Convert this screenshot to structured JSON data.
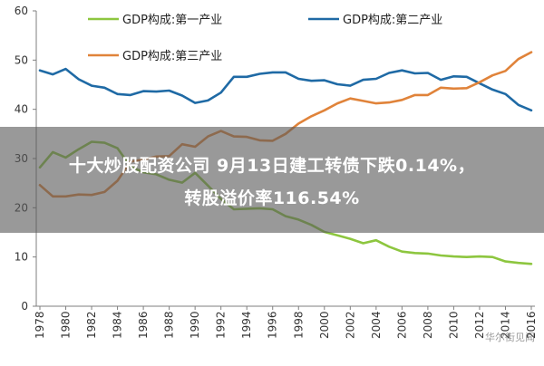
{
  "chart_data": {
    "type": "line",
    "x": [
      1978,
      1979,
      1980,
      1981,
      1982,
      1983,
      1984,
      1985,
      1986,
      1987,
      1988,
      1989,
      1990,
      1991,
      1992,
      1993,
      1994,
      1995,
      1996,
      1997,
      1998,
      1999,
      2000,
      2001,
      2002,
      2003,
      2004,
      2005,
      2006,
      2007,
      2008,
      2009,
      2010,
      2011,
      2012,
      2013,
      2014,
      2015,
      2016
    ],
    "x_ticks": [
      "1978",
      "1980",
      "1982",
      "1984",
      "1986",
      "1988",
      "1990",
      "1992",
      "1994",
      "1996",
      "1998",
      "2000",
      "2002",
      "2004",
      "2006",
      "2008",
      "2010",
      "2012",
      "2014",
      "2016"
    ],
    "y_ticks": [
      "0",
      "10",
      "20",
      "30",
      "40",
      "50",
      "60"
    ],
    "ylim": [
      0,
      60
    ],
    "series": [
      {
        "name": "GDP构成:第一产业",
        "color": "#8dc63f",
        "values": [
          28.2,
          31.3,
          30.2,
          31.9,
          33.4,
          33.2,
          32.1,
          28.4,
          27.2,
          26.8,
          25.7,
          25.1,
          27.1,
          24.5,
          21.8,
          19.7,
          19.8,
          19.9,
          19.7,
          18.3,
          17.6,
          16.5,
          15.1,
          14.4,
          13.7,
          12.8,
          13.4,
          12.1,
          11.1,
          10.8,
          10.7,
          10.3,
          10.1,
          10.0,
          10.1,
          10.0,
          9.1,
          8.8,
          8.6
        ]
      },
      {
        "name": "GDP构成:第二产业",
        "color": "#1f6aa5",
        "values": [
          47.9,
          47.1,
          48.2,
          46.1,
          44.8,
          44.4,
          43.1,
          42.9,
          43.7,
          43.6,
          43.8,
          42.8,
          41.3,
          41.8,
          43.4,
          46.6,
          46.6,
          47.2,
          47.5,
          47.5,
          46.2,
          45.8,
          45.9,
          45.1,
          44.8,
          46.0,
          46.2,
          47.4,
          47.9,
          47.3,
          47.4,
          46.0,
          46.7,
          46.6,
          45.3,
          44.0,
          43.1,
          40.9,
          39.8
        ]
      },
      {
        "name": "GDP构成:第三产业",
        "color": "#e0833a",
        "values": [
          24.6,
          22.3,
          22.3,
          22.7,
          22.6,
          23.2,
          25.5,
          29.4,
          29.8,
          30.4,
          30.5,
          32.9,
          32.4,
          34.5,
          35.6,
          34.5,
          34.4,
          33.7,
          33.6,
          35.0,
          37.1,
          38.6,
          39.8,
          41.2,
          42.2,
          41.7,
          41.2,
          41.4,
          41.9,
          42.9,
          42.9,
          44.4,
          44.2,
          44.3,
          45.5,
          46.9,
          47.8,
          50.2,
          51.6
        ]
      }
    ]
  },
  "overlay": {
    "line1": "十大炒股配资公司 9月13日建工转债下跌0.14%，",
    "line2": "转股溢价率116.54%"
  },
  "watermark": "华尔街见闻"
}
